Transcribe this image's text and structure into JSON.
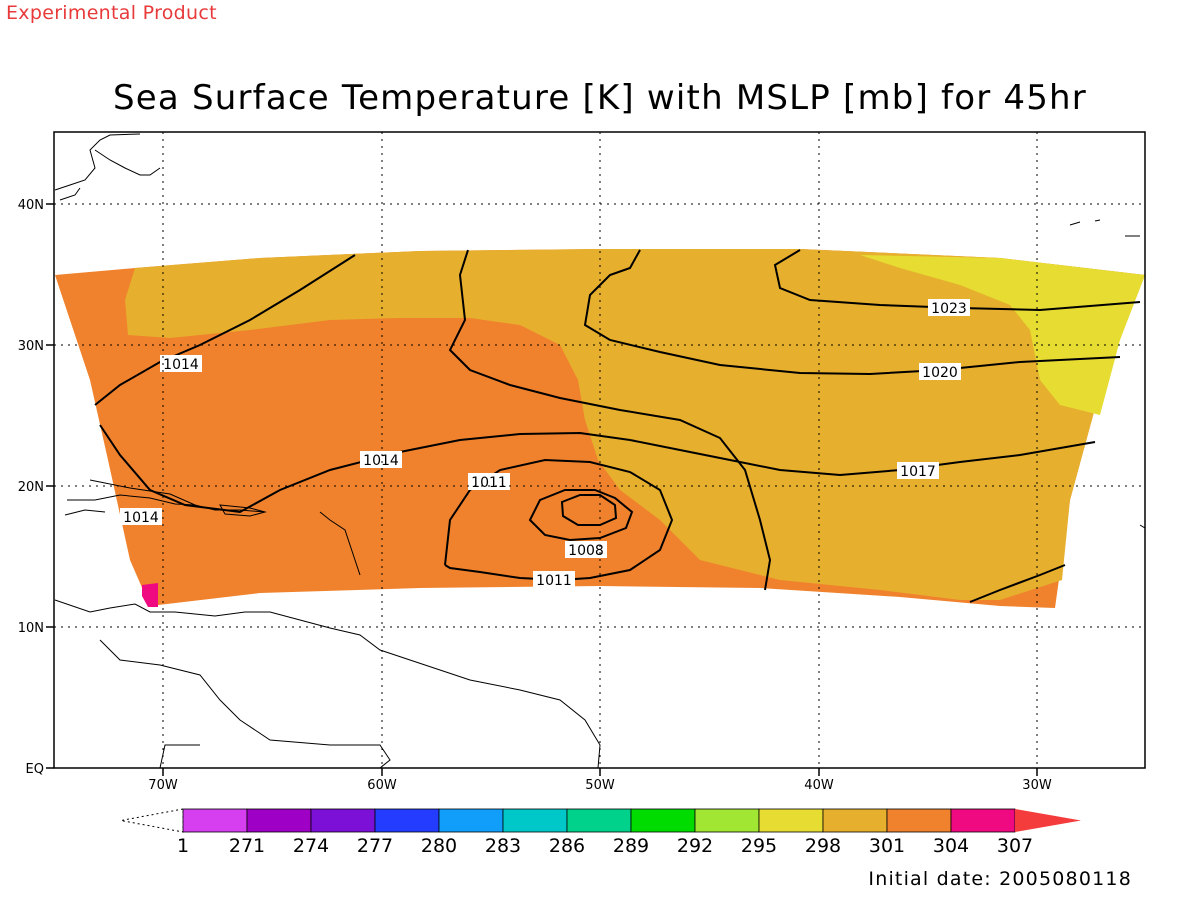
{
  "header": {
    "tag": "Experimental Product"
  },
  "title": "Sea Surface Temperature [K] with MSLP [mb] for 45hr",
  "footer": {
    "initial_date": "Initial date: 2005080118"
  },
  "map": {
    "lon_ticks": [
      "70W",
      "60W",
      "50W",
      "40W",
      "30W"
    ],
    "lat_ticks": [
      "40N",
      "30N",
      "20N",
      "10N",
      "EQ"
    ]
  },
  "colorbar": {
    "labels": [
      "1",
      "271",
      "274",
      "277",
      "280",
      "283",
      "286",
      "289",
      "292",
      "295",
      "298",
      "301",
      "304",
      "307"
    ],
    "colors": [
      "#d63fef",
      "#9f00c5",
      "#7d10d6",
      "#243cff",
      "#119efb",
      "#00c8c8",
      "#00d28b",
      "#00dc00",
      "#a0e632",
      "#e6dc32",
      "#e6af2d",
      "#f0822d",
      "#f00a82",
      "#f53c3c"
    ]
  },
  "isobars": [
    {
      "label": "1014"
    },
    {
      "label": "1014"
    },
    {
      "label": "1014"
    },
    {
      "label": "1011"
    },
    {
      "label": "1011"
    },
    {
      "label": "1008"
    },
    {
      "label": "1017"
    },
    {
      "label": "1020"
    },
    {
      "label": "1023"
    }
  ],
  "colors": {
    "sst_301": "#e6af2d",
    "sst_304": "#f0822d",
    "sst_298": "#e6dc32",
    "sst_307": "#f00a82",
    "header": "#e83a3a"
  }
}
